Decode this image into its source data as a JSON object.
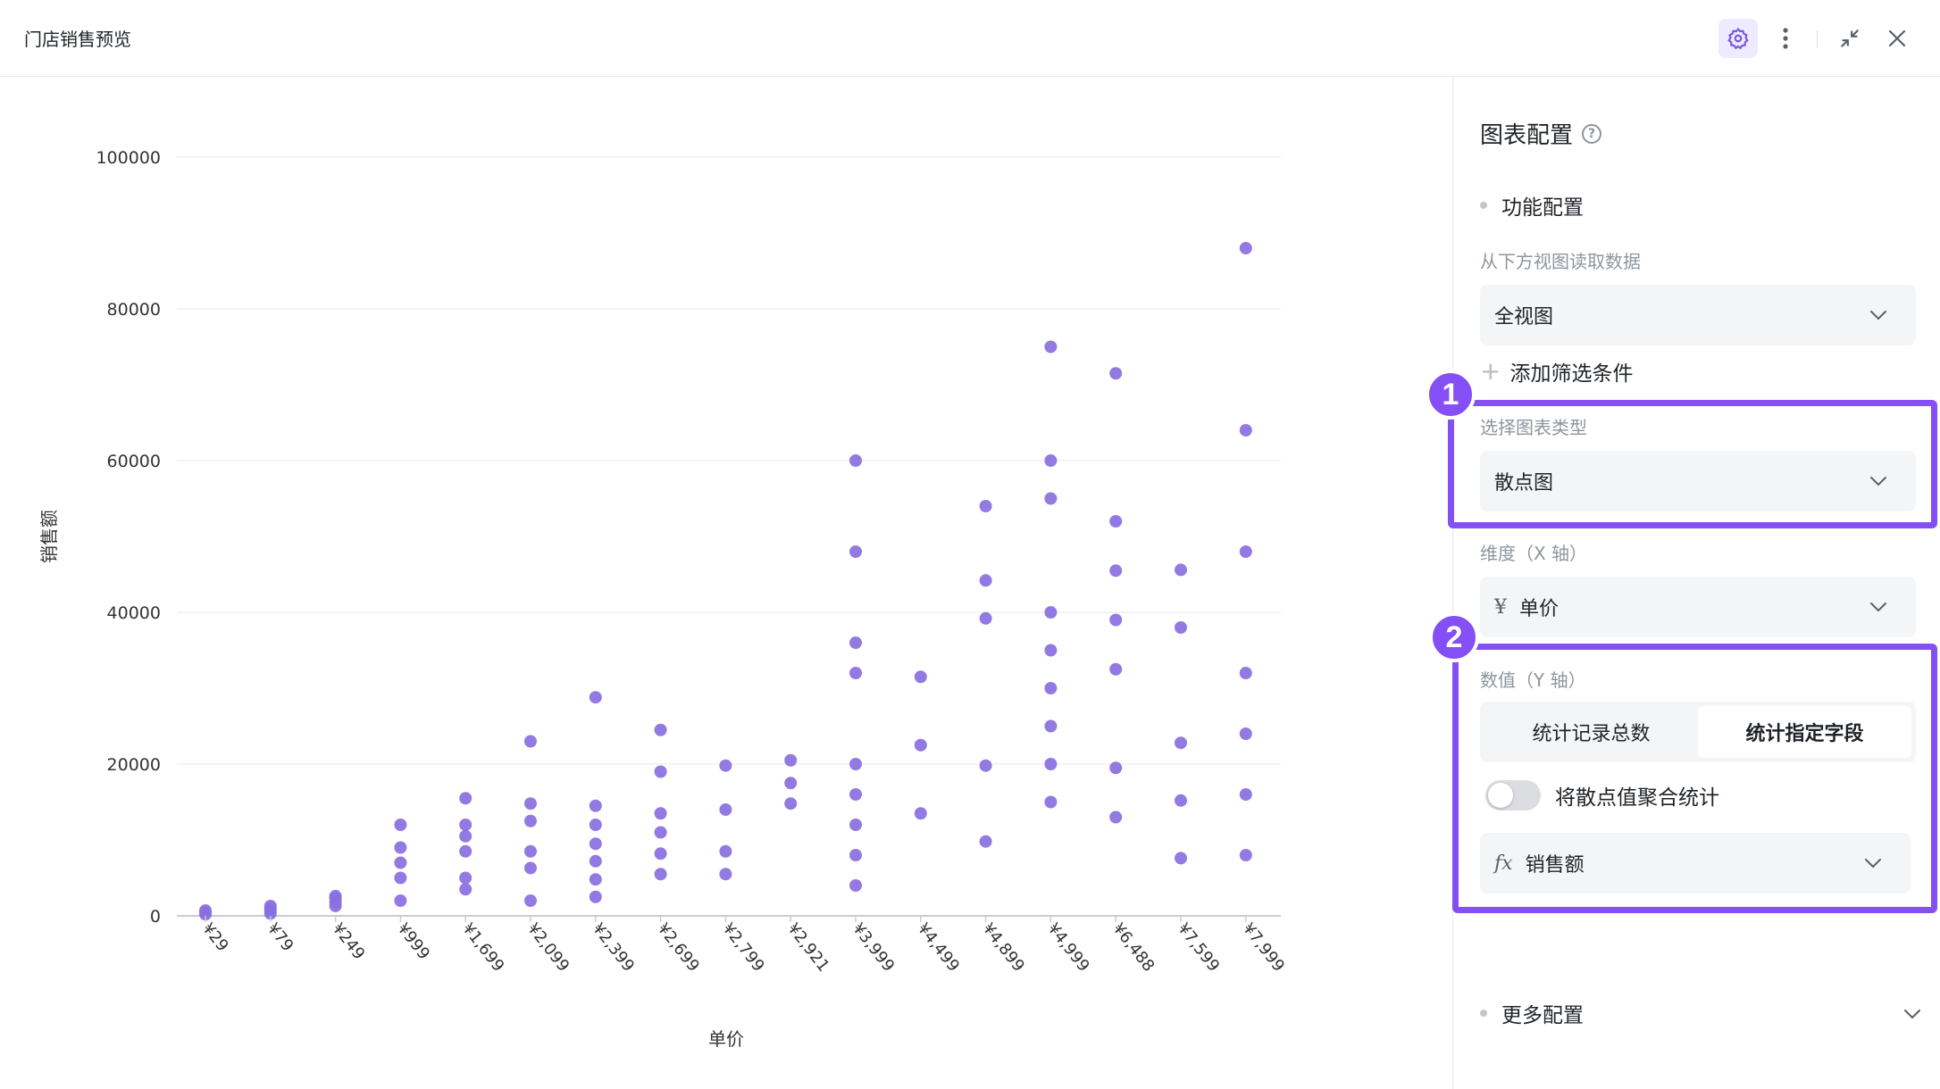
{
  "window": {
    "title": "门店销售预览"
  },
  "panel": {
    "title": "图表配置",
    "help_glyph": "?",
    "function_section": "功能配置",
    "data_source_label": "从下方视图读取数据",
    "data_source_value": "全视图",
    "add_filter_label": "添加筛选条件",
    "chart_type_label": "选择图表类型",
    "chart_type_value": "散点图",
    "dimension_label": "维度（X 轴）",
    "dimension_prefix": "¥",
    "dimension_value": "单价",
    "value_label": "数值（Y 轴）",
    "value_tabs": [
      "统计记录总数",
      "统计指定字段"
    ],
    "value_active_tab": 1,
    "aggregate_toggle_label": "将散点值聚合统计",
    "aggregate_toggle_on": false,
    "value_field_prefix": "fx",
    "value_field": "销售额",
    "more_section": "更多配置"
  },
  "annotations": {
    "badge1": "1",
    "badge2": "2",
    "highlight_color": "#8450f5"
  },
  "chart_data": {
    "type": "scatter",
    "xlabel": "单价",
    "ylabel": "销售额",
    "ylim": [
      0,
      100000
    ],
    "yticks": [
      0,
      20000,
      40000,
      60000,
      80000,
      100000
    ],
    "categories": [
      "¥29",
      "¥79",
      "¥249",
      "¥999",
      "¥1,699",
      "¥2,099",
      "¥2,399",
      "¥2,699",
      "¥2,799",
      "¥2,921",
      "¥3,999",
      "¥4,499",
      "¥4,899",
      "¥4,999",
      "¥6,488",
      "¥7,599",
      "¥7,999"
    ],
    "series": [
      {
        "color": "#8a6fe0",
        "points": [
          [
            0,
            200
          ],
          [
            0,
            500
          ],
          [
            0,
            700
          ],
          [
            1,
            300
          ],
          [
            1,
            700
          ],
          [
            1,
            1000
          ],
          [
            1,
            1300
          ],
          [
            2,
            1300
          ],
          [
            2,
            1800
          ],
          [
            2,
            2300
          ],
          [
            2,
            2600
          ],
          [
            3,
            2000
          ],
          [
            3,
            5000
          ],
          [
            3,
            7000
          ],
          [
            3,
            9000
          ],
          [
            3,
            12000
          ],
          [
            4,
            3500
          ],
          [
            4,
            5000
          ],
          [
            4,
            8500
          ],
          [
            4,
            10500
          ],
          [
            4,
            12000
          ],
          [
            4,
            15500
          ],
          [
            5,
            2000
          ],
          [
            5,
            6300
          ],
          [
            5,
            8500
          ],
          [
            5,
            12500
          ],
          [
            5,
            14800
          ],
          [
            5,
            23000
          ],
          [
            6,
            2500
          ],
          [
            6,
            4800
          ],
          [
            6,
            7200
          ],
          [
            6,
            9500
          ],
          [
            6,
            12000
          ],
          [
            6,
            14500
          ],
          [
            6,
            28800
          ],
          [
            7,
            5500
          ],
          [
            7,
            8200
          ],
          [
            7,
            11000
          ],
          [
            7,
            13500
          ],
          [
            7,
            19000
          ],
          [
            7,
            24500
          ],
          [
            8,
            5500
          ],
          [
            8,
            8500
          ],
          [
            8,
            14000
          ],
          [
            8,
            19800
          ],
          [
            9,
            14800
          ],
          [
            9,
            17500
          ],
          [
            9,
            20500
          ],
          [
            10,
            4000
          ],
          [
            10,
            8000
          ],
          [
            10,
            12000
          ],
          [
            10,
            16000
          ],
          [
            10,
            20000
          ],
          [
            10,
            32000
          ],
          [
            10,
            36000
          ],
          [
            10,
            48000
          ],
          [
            10,
            60000
          ],
          [
            11,
            13500
          ],
          [
            11,
            22500
          ],
          [
            11,
            31500
          ],
          [
            12,
            9800
          ],
          [
            12,
            19800
          ],
          [
            12,
            39200
          ],
          [
            12,
            44200
          ],
          [
            12,
            54000
          ],
          [
            13,
            15000
          ],
          [
            13,
            20000
          ],
          [
            13,
            25000
          ],
          [
            13,
            30000
          ],
          [
            13,
            35000
          ],
          [
            13,
            40000
          ],
          [
            13,
            55000
          ],
          [
            13,
            60000
          ],
          [
            13,
            75000
          ],
          [
            14,
            13000
          ],
          [
            14,
            19500
          ],
          [
            14,
            32500
          ],
          [
            14,
            39000
          ],
          [
            14,
            45500
          ],
          [
            14,
            52000
          ],
          [
            14,
            71500
          ],
          [
            15,
            7600
          ],
          [
            15,
            15200
          ],
          [
            15,
            22800
          ],
          [
            15,
            38000
          ],
          [
            15,
            45600
          ],
          [
            16,
            8000
          ],
          [
            16,
            16000
          ],
          [
            16,
            24000
          ],
          [
            16,
            32000
          ],
          [
            16,
            48000
          ],
          [
            16,
            64000
          ],
          [
            16,
            88000
          ]
        ]
      }
    ],
    "grid": true
  }
}
